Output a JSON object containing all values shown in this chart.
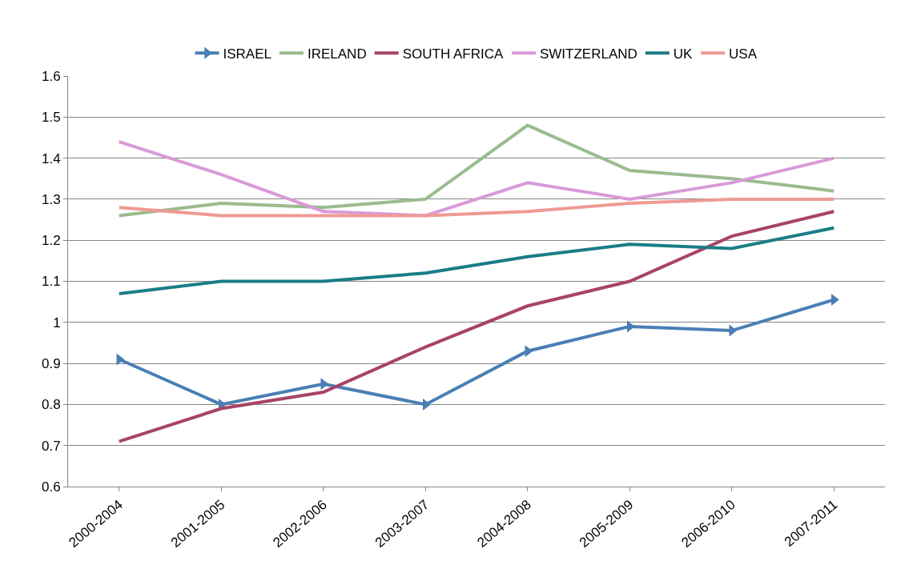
{
  "chart_data": {
    "type": "line",
    "categories": [
      "2000-2004",
      "2001-2005",
      "2002-2006",
      "2003-2007",
      "2004-2008",
      "2005-2009",
      "2006-2010",
      "2007-2011"
    ],
    "series": [
      {
        "name": "ISRAEL",
        "color": "#4a7eb5",
        "marker": "triangle",
        "values": [
          0.91,
          0.8,
          0.85,
          0.8,
          0.93,
          0.99,
          0.98,
          1.055
        ]
      },
      {
        "name": "IRELAND",
        "color": "#9bbb8e",
        "values": [
          1.26,
          1.29,
          1.28,
          1.3,
          1.48,
          1.37,
          1.35,
          1.32
        ]
      },
      {
        "name": "SOUTH AFRICA",
        "color": "#a84466",
        "values": [
          0.71,
          0.79,
          0.83,
          0.94,
          1.04,
          1.1,
          1.21,
          1.27
        ]
      },
      {
        "name": "SWITZERLAND",
        "color": "#d99ad8",
        "values": [
          1.44,
          1.36,
          1.27,
          1.26,
          1.34,
          1.3,
          1.34,
          1.4
        ]
      },
      {
        "name": "UK",
        "color": "#1a7d87",
        "values": [
          1.07,
          1.1,
          1.1,
          1.12,
          1.16,
          1.19,
          1.18,
          1.23
        ]
      },
      {
        "name": "USA",
        "color": "#ee9a94",
        "values": [
          1.28,
          1.26,
          1.26,
          1.26,
          1.27,
          1.29,
          1.3,
          1.3
        ]
      }
    ],
    "ylim": [
      0.6,
      1.6
    ],
    "yticks": [
      0.6,
      0.7,
      0.8,
      0.9,
      1,
      1.1,
      1.2,
      1.3,
      1.4,
      1.5,
      1.6
    ],
    "grid": "y",
    "legend": "top",
    "marker": "none",
    "line_style": "solid"
  }
}
